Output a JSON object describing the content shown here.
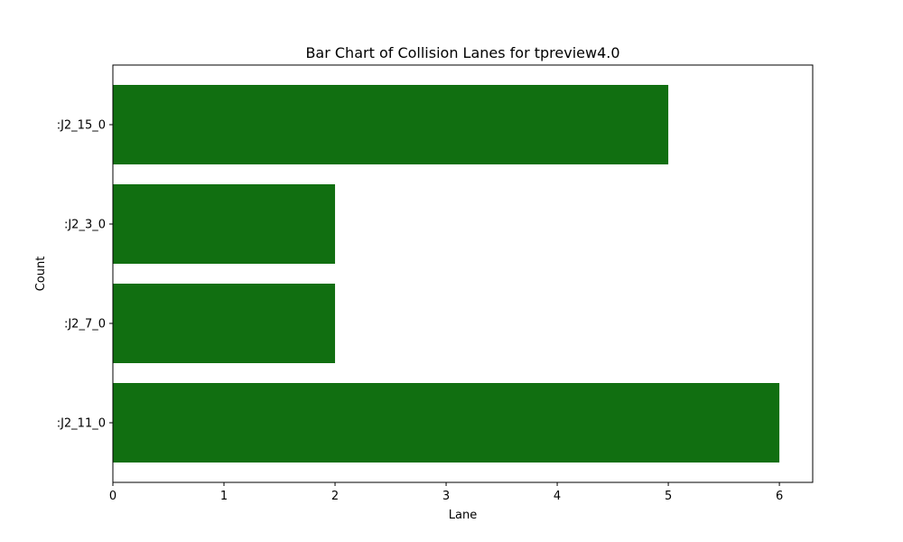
{
  "chart_data": {
    "type": "bar",
    "orientation": "horizontal",
    "title": "Bar Chart of Collision Lanes for tpreview4.0",
    "xlabel": "Lane",
    "ylabel": "Count",
    "categories": [
      ":J2_15_0",
      ":J2_3_0",
      ":J2_7_0",
      ":J2_11_0"
    ],
    "values": [
      5,
      2,
      2,
      6
    ],
    "xlim": [
      0,
      6.3
    ],
    "xticks": [
      "0",
      "1",
      "2",
      "3",
      "4",
      "5",
      "6"
    ],
    "grid": false,
    "legend": "none",
    "bar_color": "#116f11"
  }
}
